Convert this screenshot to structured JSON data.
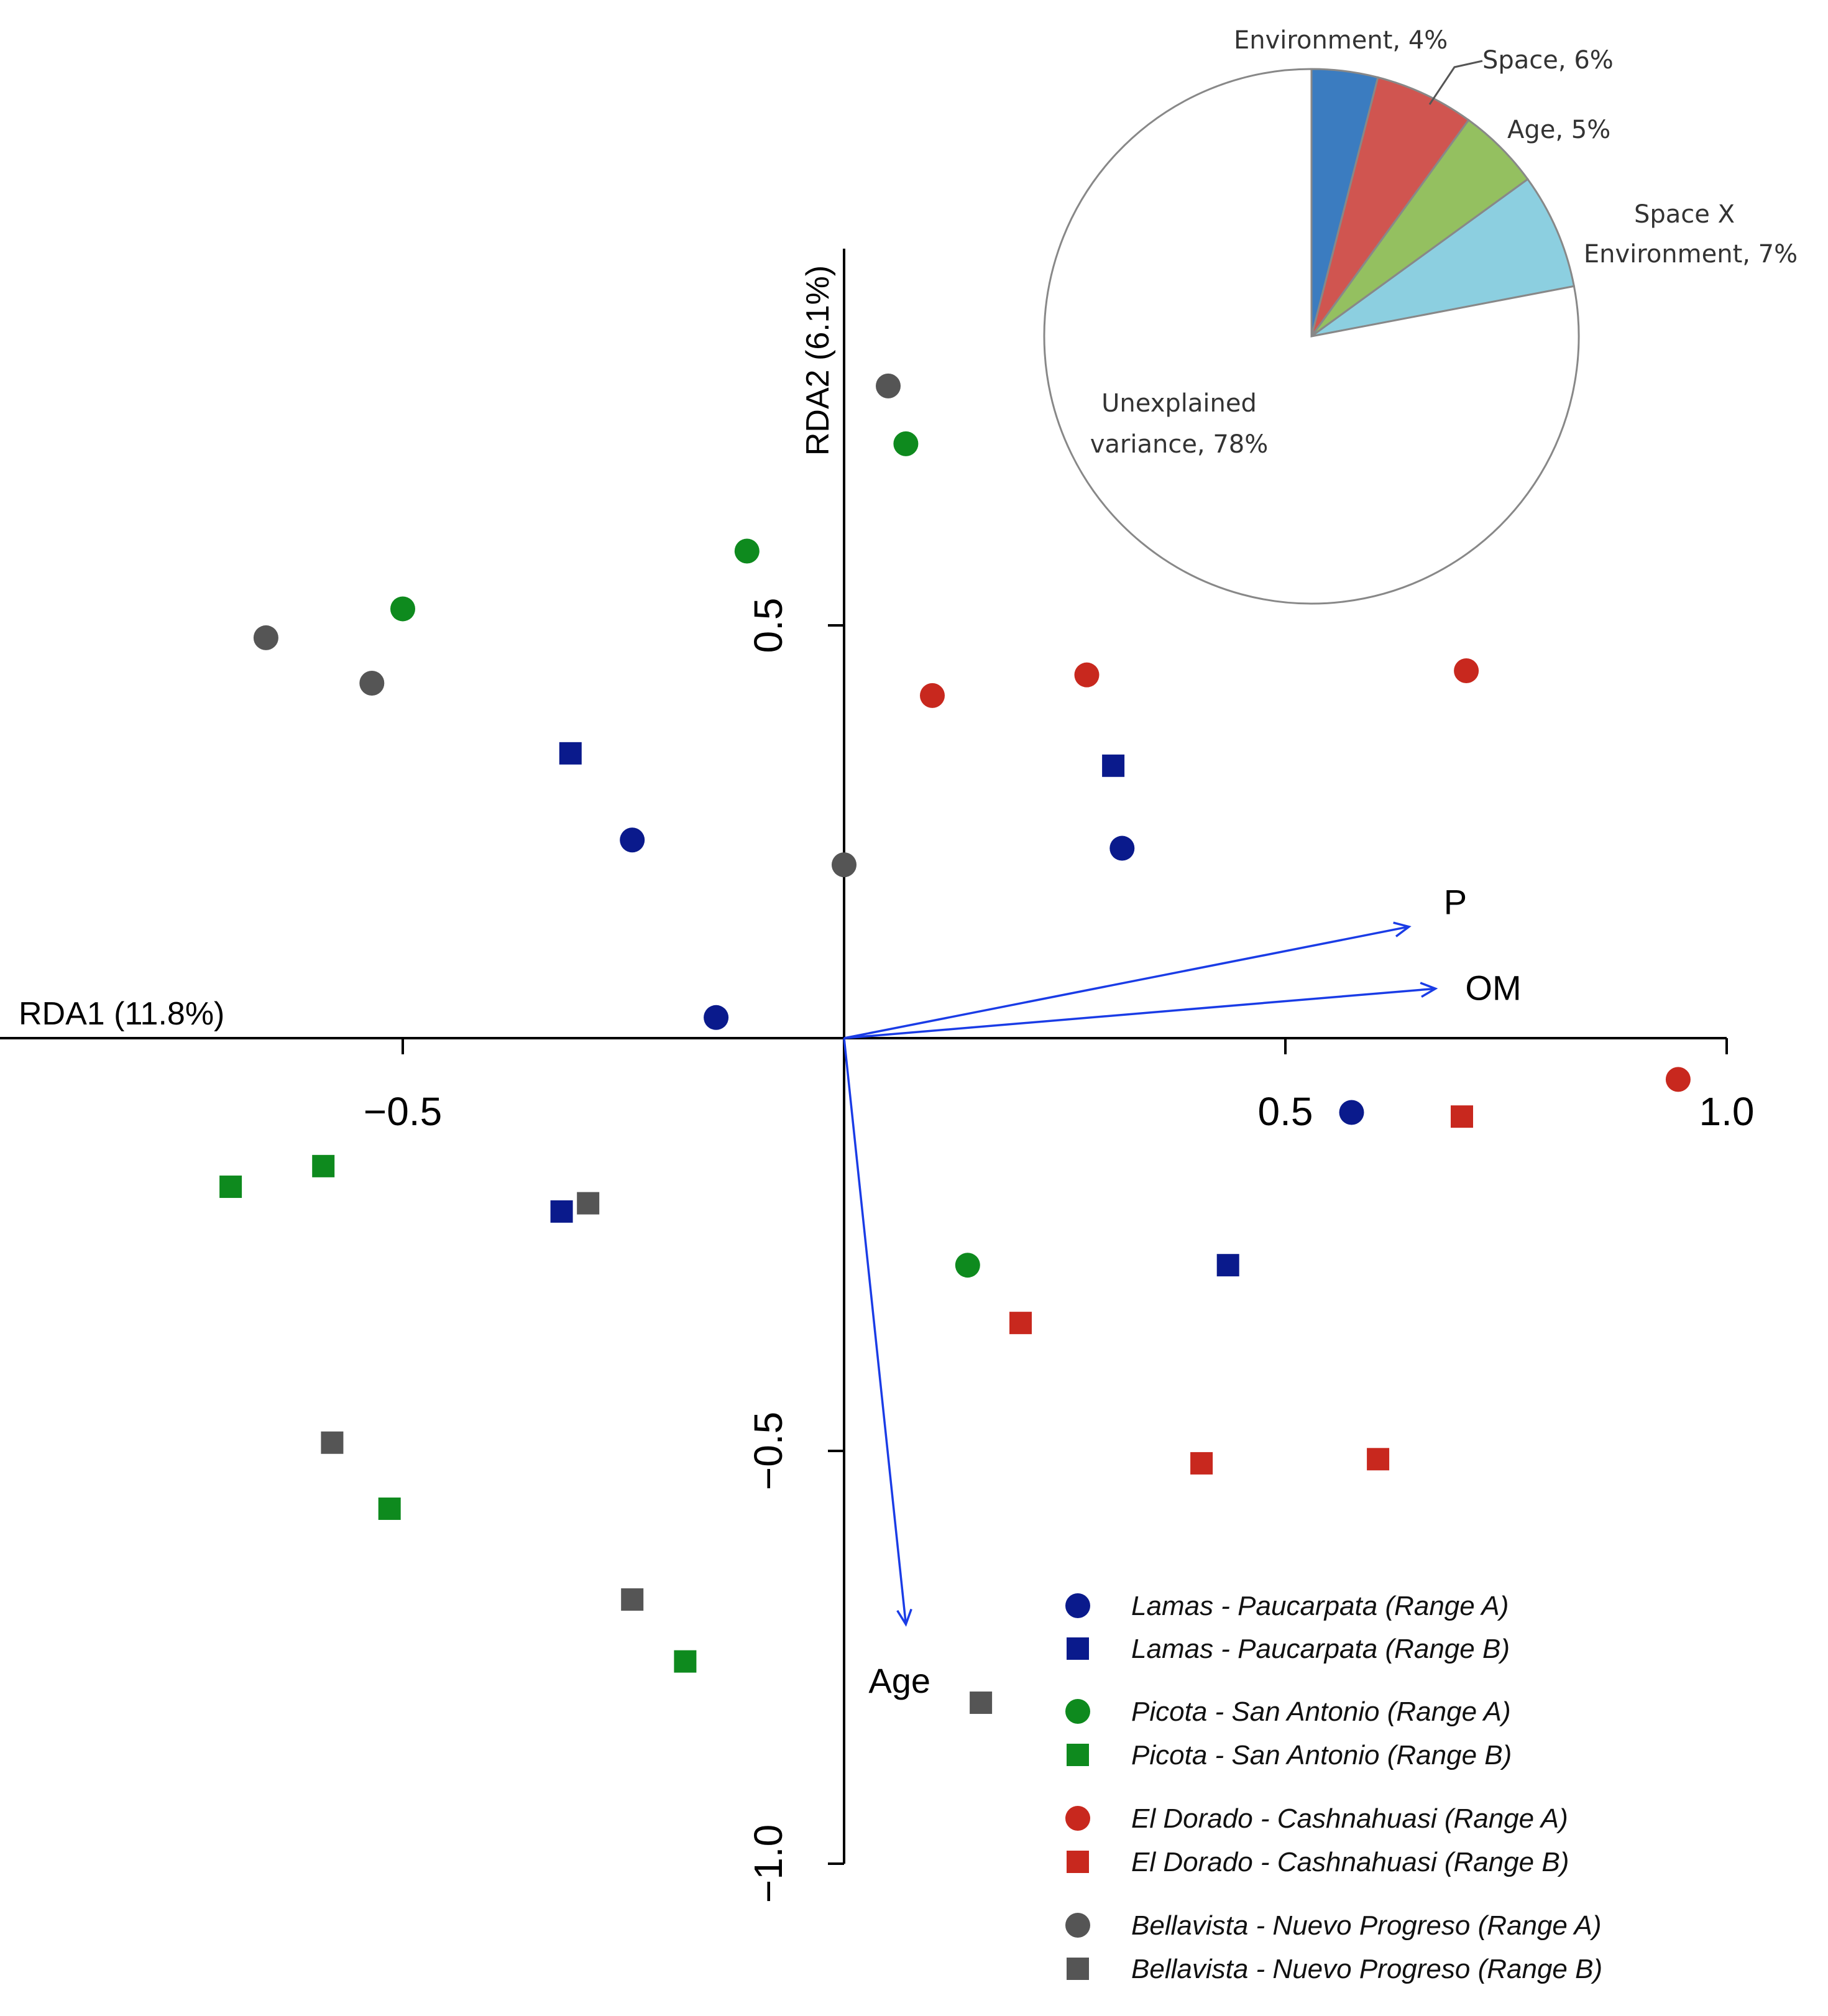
{
  "chart_data": [
    {
      "type": "scatter",
      "title": "",
      "xlabel": "RDA1 (11.8%)",
      "ylabel": "RDA2 (6.1%)",
      "xlim": [
        -0.95,
        1.0
      ],
      "ylim": [
        -1.0,
        0.9
      ],
      "x_ticks": [
        {
          "value": -0.5,
          "label": "−0.5"
        },
        {
          "value": 0.5,
          "label": "0.5"
        },
        {
          "value": 1.0,
          "label": "1.0"
        }
      ],
      "y_ticks": [
        {
          "value": 0.5,
          "label": "0.5"
        },
        {
          "value": -0.5,
          "label": "−0.5"
        },
        {
          "value": -1.0,
          "label": "−1.0"
        }
      ],
      "series": [
        {
          "name": "Lamas - Paucarpata (Range A)",
          "marker": "circle",
          "color": "#0a1a8c",
          "points": [
            [
              -0.24,
              0.24
            ],
            [
              -0.145,
              0.025
            ],
            [
              0.315,
              0.23
            ],
            [
              0.575,
              -0.09
            ]
          ]
        },
        {
          "name": "Lamas - Paucarpata (Range B)",
          "marker": "square",
          "color": "#0a1a8c",
          "points": [
            [
              -0.31,
              0.345
            ],
            [
              0.305,
              0.33
            ],
            [
              -0.32,
              -0.21
            ],
            [
              0.435,
              -0.275
            ]
          ]
        },
        {
          "name": "Picota - San Antonio (Range A)",
          "marker": "circle",
          "color": "#0e8a1e",
          "points": [
            [
              0.07,
              0.72
            ],
            [
              -0.11,
              0.59
            ],
            [
              -0.5,
              0.52
            ],
            [
              0.14,
              -0.275
            ]
          ]
        },
        {
          "name": "Picota - San Antonio (Range B)",
          "marker": "square",
          "color": "#0e8a1e",
          "points": [
            [
              -0.695,
              -0.18
            ],
            [
              -0.59,
              -0.155
            ],
            [
              -0.515,
              -0.57
            ],
            [
              -0.18,
              -0.755
            ]
          ]
        },
        {
          "name": "El Dorado - Cashnahuasi (Range A)",
          "marker": "circle",
          "color": "#c8281e",
          "points": [
            [
              0.1,
              0.415
            ],
            [
              0.275,
              0.44
            ],
            [
              0.705,
              0.445
            ],
            [
              0.945,
              -0.05
            ]
          ]
        },
        {
          "name": "El Dorado - Cashnahuasi (Range B)",
          "marker": "square",
          "color": "#c8281e",
          "points": [
            [
              0.7,
              -0.095
            ],
            [
              0.2,
              -0.345
            ],
            [
              0.405,
              -0.515
            ],
            [
              0.605,
              -0.51
            ]
          ]
        },
        {
          "name": "Bellavista - Nuevo Progreso (Range A)",
          "marker": "circle",
          "color": "#555555",
          "points": [
            [
              0.05,
              0.79
            ],
            [
              -0.655,
              0.485
            ],
            [
              -0.535,
              0.43
            ],
            [
              0.0,
              0.21
            ]
          ]
        },
        {
          "name": "Bellavista - Nuevo Progreso (Range B)",
          "marker": "square",
          "color": "#555555",
          "points": [
            [
              -0.29,
              -0.2
            ],
            [
              -0.58,
              -0.49
            ],
            [
              -0.24,
              -0.68
            ],
            [
              0.155,
              -0.805
            ]
          ]
        }
      ],
      "vectors": [
        {
          "label": "P",
          "x": 0.64,
          "y": 0.135
        },
        {
          "label": "OM",
          "x": 0.67,
          "y": 0.06
        },
        {
          "label": "Age",
          "x": 0.07,
          "y": -0.71
        }
      ],
      "legend_position": "bottom-right"
    },
    {
      "type": "pie",
      "title": "",
      "legend_position": "none",
      "slices": [
        {
          "label": "Environment, 4%",
          "value": 4,
          "color": "#3b7cc0"
        },
        {
          "label": "Space, 6%",
          "value": 6,
          "color": "#d05550"
        },
        {
          "label": "Age, 5%",
          "value": 5,
          "color": "#94c060"
        },
        {
          "label_lines": [
            "Space X",
            "Environment, 7%"
          ],
          "label": "Space X Environment, 7%",
          "value": 7,
          "color": "#8ccfe0"
        },
        {
          "label_lines": [
            "Unexplained",
            "variance, 78%"
          ],
          "label": "Unexplained variance, 78%",
          "value": 78,
          "color": "#ffffff"
        }
      ]
    }
  ],
  "colors": {
    "axis": "#000000",
    "vector": "#1a3ce6",
    "pie_outline": "#888888"
  }
}
